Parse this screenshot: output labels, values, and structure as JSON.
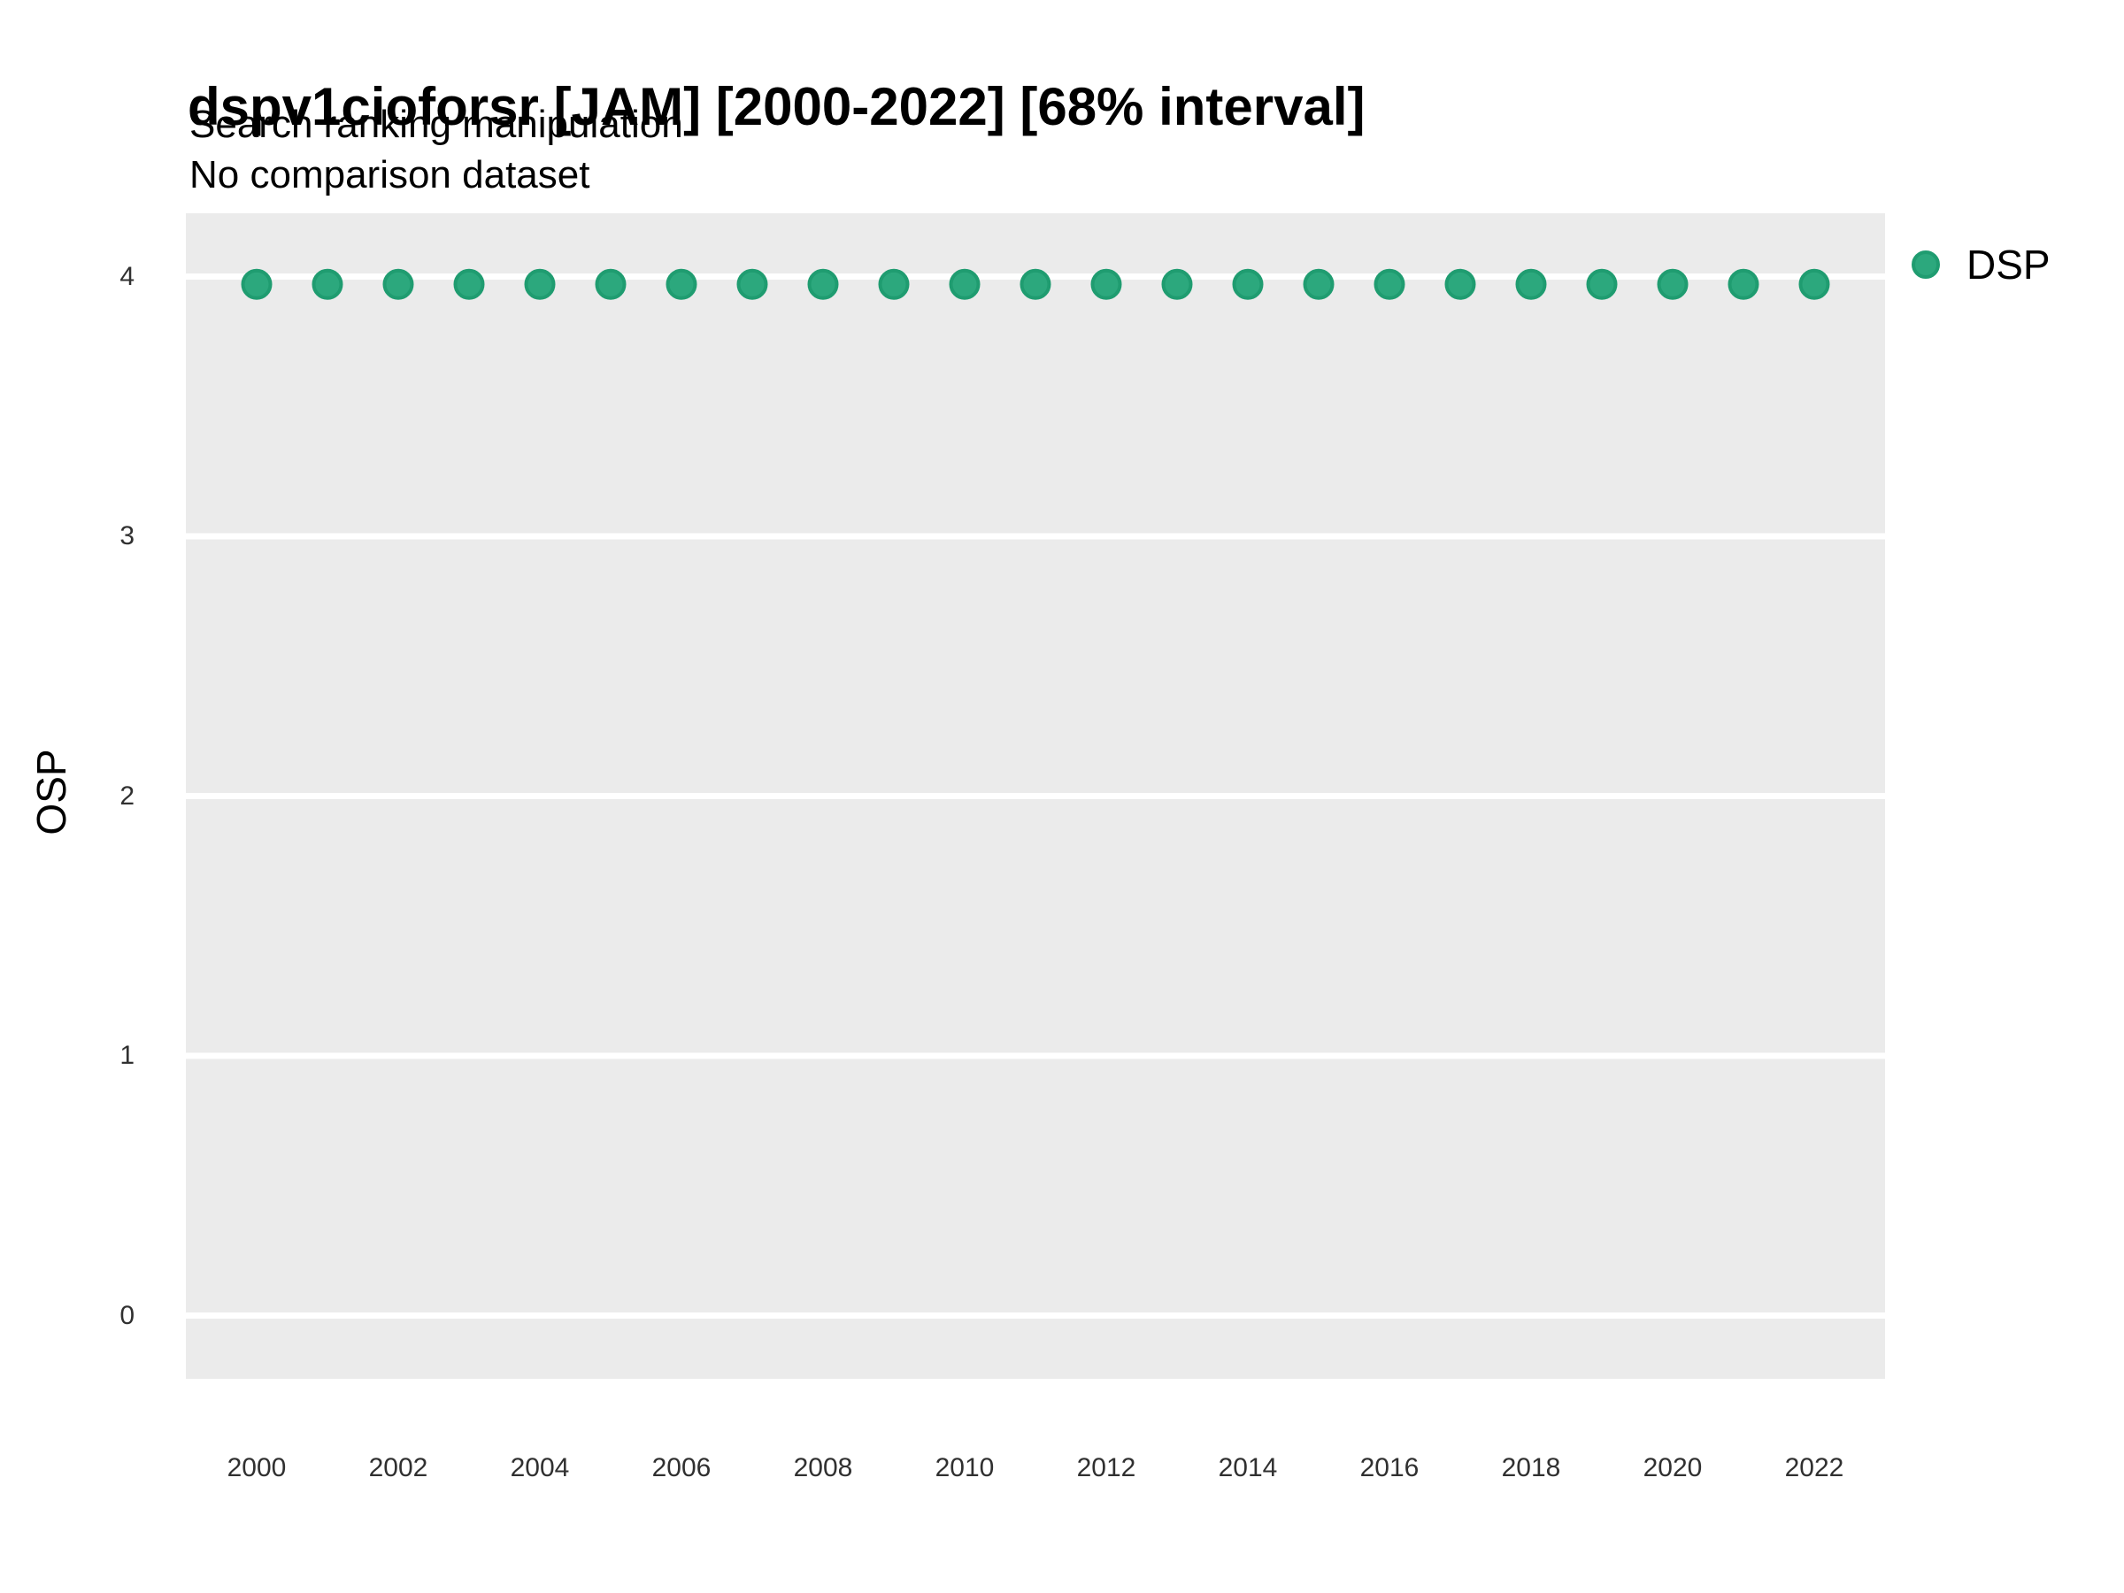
{
  "header": {
    "title": "dspv1cioforsr [JAM] [2000-2022] [68% interval]",
    "subtitle_line1": "Search ranking manipulation",
    "subtitle_line2": "No comparison dataset"
  },
  "axes": {
    "y_title": "OSP",
    "y_ticks": [
      0,
      1,
      2,
      3,
      4
    ],
    "x_ticks": [
      2000,
      2002,
      2004,
      2006,
      2008,
      2010,
      2012,
      2014,
      2016,
      2018,
      2020,
      2022
    ]
  },
  "legend": {
    "label": "DSP"
  },
  "chart_data": {
    "type": "scatter",
    "title": "dspv1cioforsr [JAM] [2000-2022] [68% interval]",
    "subtitle": [
      "Search ranking manipulation",
      "No comparison dataset"
    ],
    "xlabel": "",
    "ylabel": "OSP",
    "series": [
      {
        "name": "DSP",
        "x": [
          2000,
          2001,
          2002,
          2003,
          2004,
          2005,
          2006,
          2007,
          2008,
          2009,
          2010,
          2011,
          2012,
          2013,
          2014,
          2015,
          2016,
          2017,
          2018,
          2019,
          2020,
          2021,
          2022
        ],
        "y": [
          3.97,
          3.97,
          3.97,
          3.97,
          3.97,
          3.97,
          3.97,
          3.97,
          3.97,
          3.97,
          3.97,
          3.97,
          3.97,
          3.97,
          3.97,
          3.97,
          3.97,
          3.97,
          3.97,
          3.97,
          3.97,
          3.97,
          3.97
        ]
      }
    ],
    "x_ticks": [
      2000,
      2002,
      2004,
      2006,
      2008,
      2010,
      2012,
      2014,
      2016,
      2018,
      2020,
      2022
    ],
    "y_ticks": [
      0,
      1,
      2,
      3,
      4
    ],
    "xlim": [
      1999,
      2023
    ],
    "ylim": [
      -0.245,
      4.245
    ],
    "grid": "horizontal-major-only",
    "legend_position": "right",
    "colors": {
      "point_fill": "#2CA87D",
      "point_stroke": "#1F9C70",
      "panel_bg": "#EBEBEB",
      "gridline": "#FFFFFF",
      "tick_text": "#303030"
    }
  }
}
